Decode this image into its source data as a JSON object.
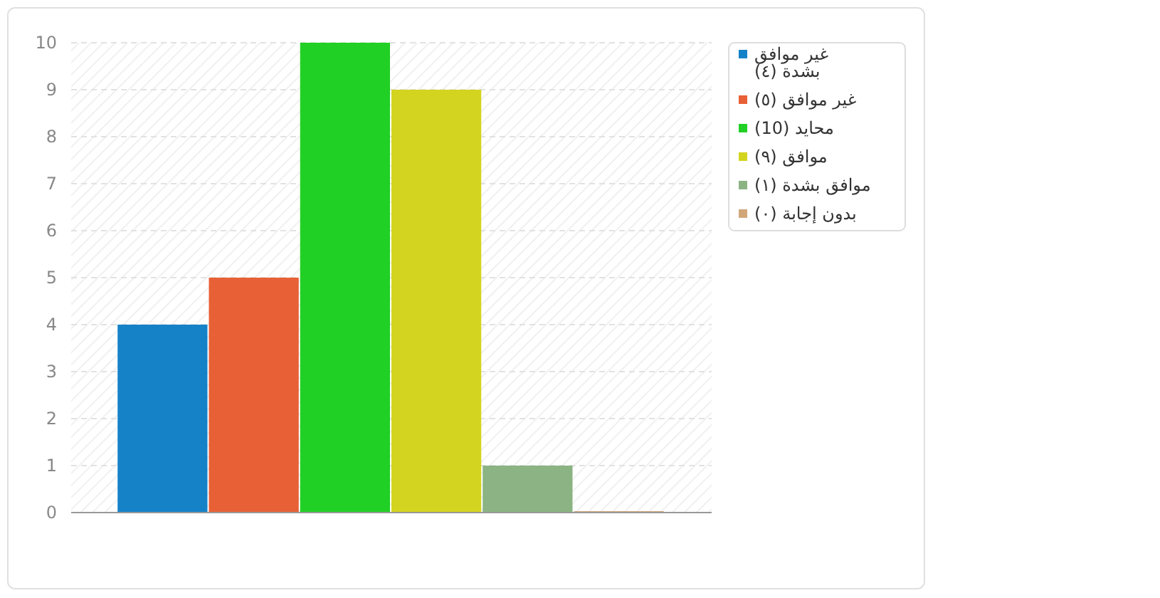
{
  "chart_data": {
    "type": "bar",
    "categories": [
      null
    ],
    "series": [
      {
        "name": "غير موافق بشدة (٤)",
        "color": "#1582c8",
        "values": [
          4
        ]
      },
      {
        "name": "غير موافق (٥)",
        "color": "#e86035",
        "values": [
          5
        ]
      },
      {
        "name": "محايد (10)",
        "color": "#21d024",
        "values": [
          10
        ]
      },
      {
        "name": "موافق (٩)",
        "color": "#d3d41f",
        "values": [
          9
        ]
      },
      {
        "name": "موافق بشدة (١)",
        "color": "#8bb383",
        "values": [
          1
        ]
      },
      {
        "name": "بدون إجابة (٠)",
        "color": "#d1a77a",
        "values": [
          0
        ]
      }
    ],
    "ylim": [
      0,
      10
    ],
    "yticks": [
      0,
      1,
      2,
      3,
      4,
      5,
      6,
      7,
      8,
      9,
      10
    ],
    "grid": "y",
    "legend": "top right"
  }
}
